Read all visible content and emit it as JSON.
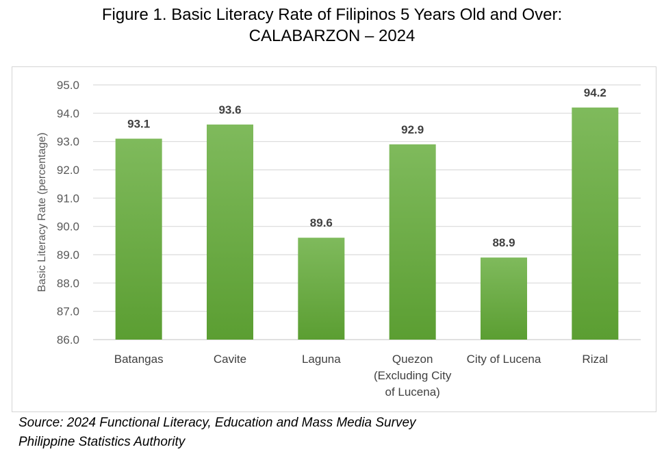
{
  "title_line1": "Figure 1.  Basic Literacy Rate of Filipinos 5 Years Old and Over:",
  "title_line2": "CALABARZON – 2024",
  "source_line1": "Source: 2024 Functional Literacy, Education and Mass Media Survey",
  "source_line2": "Philippine Statistics Authority",
  "chart_data": {
    "type": "bar",
    "title": "Figure 1.  Basic Literacy Rate of Filipinos 5 Years Old and Over: CALABARZON – 2024",
    "ylabel": "Basic Literacy Rate (percentage)",
    "xlabel": "",
    "ylim": [
      86.0,
      95.0
    ],
    "yticks": [
      "86.0",
      "87.0",
      "88.0",
      "89.0",
      "90.0",
      "91.0",
      "92.0",
      "93.0",
      "94.0",
      "95.0"
    ],
    "grid": true,
    "legend": "none",
    "bar_color": "#6aad45",
    "categories": [
      [
        "Batangas"
      ],
      [
        "Cavite"
      ],
      [
        "Laguna"
      ],
      [
        "Quezon",
        "(Excluding City",
        "of Lucena)"
      ],
      [
        "City of Lucena"
      ],
      [
        "Rizal"
      ]
    ],
    "values": [
      93.1,
      93.6,
      89.6,
      92.9,
      88.9,
      94.2
    ],
    "value_labels": [
      "93.1",
      "93.6",
      "89.6",
      "92.9",
      "88.9",
      "94.2"
    ]
  }
}
